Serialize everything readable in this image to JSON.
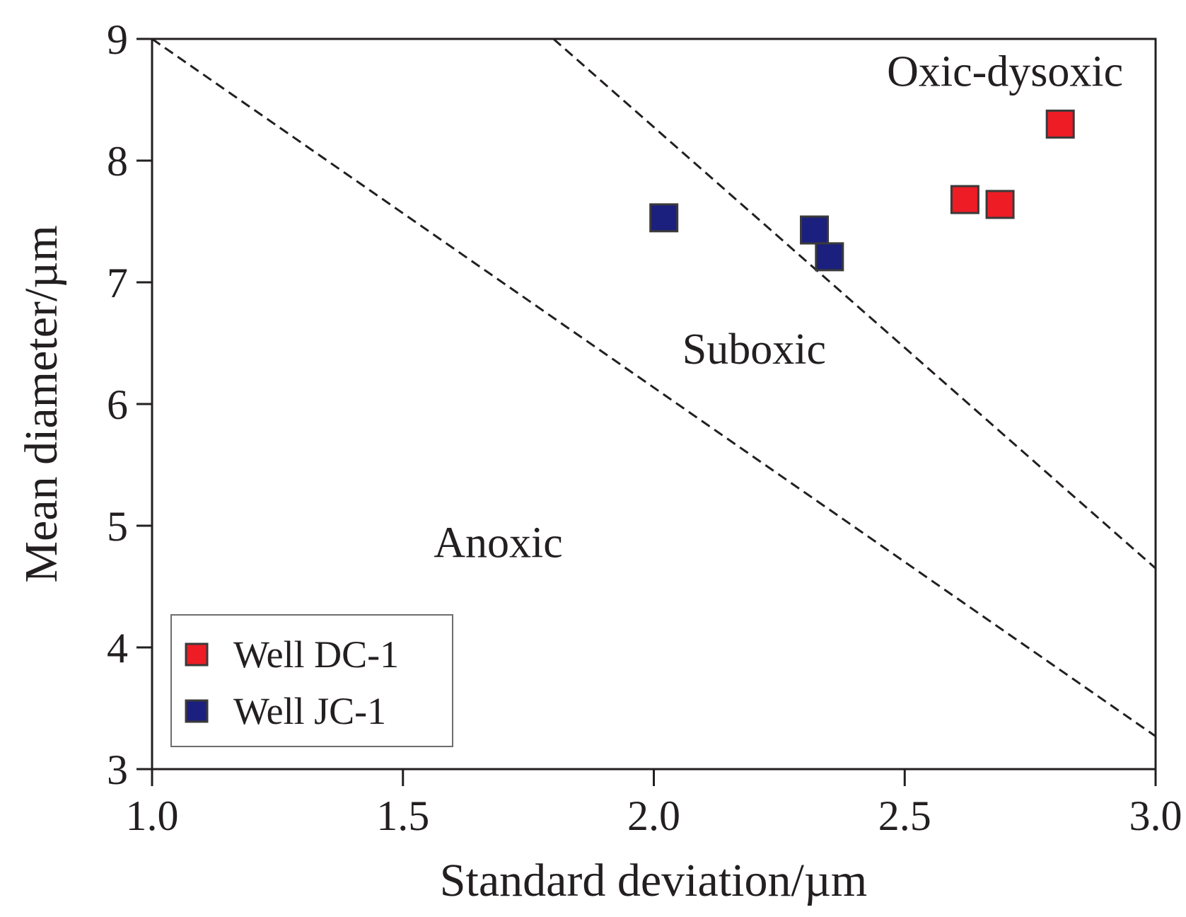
{
  "chart_data": {
    "type": "scatter",
    "title": "",
    "xlabel": "Standard deviation/µm",
    "ylabel": "Mean diameter/µm",
    "xlim": [
      1.0,
      3.0
    ],
    "ylim": [
      3,
      9
    ],
    "xticks": [
      "1.0",
      "1.5",
      "2.0",
      "2.5",
      "3.0"
    ],
    "yticks": [
      "3",
      "4",
      "5",
      "6",
      "7",
      "8",
      "9"
    ],
    "grid": false,
    "legend_position": "bottom-left",
    "series": [
      {
        "name": "Well DC-1",
        "color": "#ee1c25",
        "marker": "square",
        "points": [
          [
            2.62,
            7.68
          ],
          [
            2.69,
            7.64
          ],
          [
            2.81,
            8.3
          ]
        ]
      },
      {
        "name": "Well JC-1",
        "color": "#1b1f7d",
        "marker": "square",
        "points": [
          [
            2.02,
            7.53
          ],
          [
            2.32,
            7.43
          ],
          [
            2.35,
            7.21
          ]
        ]
      }
    ],
    "boundaries": [
      {
        "name": "anoxic-suboxic",
        "style": "dashed",
        "from": [
          1.0,
          9.0
        ],
        "to": [
          3.0,
          3.27
        ]
      },
      {
        "name": "suboxic-oxic",
        "style": "dashed",
        "from": [
          1.8,
          9.0
        ],
        "to": [
          3.0,
          4.65
        ]
      }
    ],
    "regions": [
      {
        "label": "Oxic-dysoxic",
        "x": 2.7,
        "y": 8.74
      },
      {
        "label": "Suboxic",
        "x": 2.2,
        "y": 6.46
      },
      {
        "label": "Anoxic",
        "x": 1.69,
        "y": 4.87
      }
    ]
  }
}
